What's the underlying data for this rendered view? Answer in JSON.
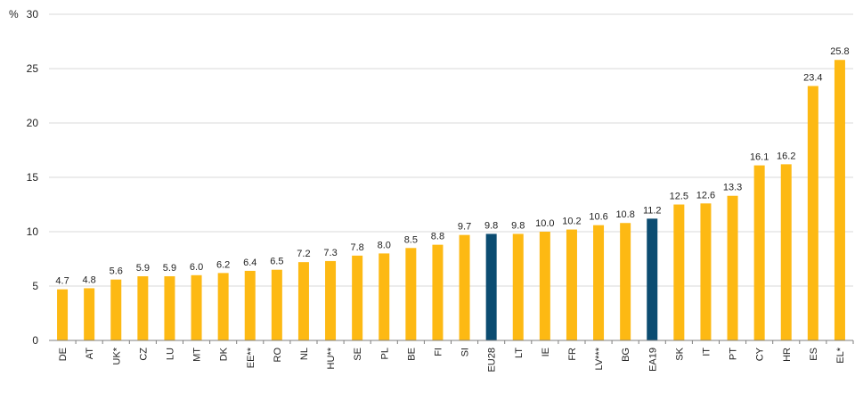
{
  "chart_data": {
    "type": "bar",
    "ylabel": "%",
    "ylim": [
      0,
      30
    ],
    "yticks": [
      0,
      5,
      10,
      15,
      20,
      25,
      30
    ],
    "grid": true,
    "categories": [
      "DE",
      "AT",
      "UK*",
      "CZ",
      "LU",
      "MT",
      "DK",
      "EE**",
      "RO",
      "NL",
      "HU**",
      "SE",
      "PL",
      "BE",
      "FI",
      "SI",
      "EU28",
      "LT",
      "IE",
      "FR",
      "LV***",
      "BG",
      "EA19",
      "SK",
      "IT",
      "PT",
      "CY",
      "HR",
      "ES",
      "EL*"
    ],
    "values": [
      4.7,
      4.8,
      5.6,
      5.9,
      5.9,
      6.0,
      6.2,
      6.4,
      6.5,
      7.2,
      7.3,
      7.8,
      8.0,
      8.5,
      8.8,
      9.7,
      9.8,
      9.8,
      10.0,
      10.2,
      10.6,
      10.8,
      11.2,
      12.5,
      12.6,
      13.3,
      16.1,
      16.2,
      23.4,
      25.8
    ],
    "value_labels": [
      "4.7",
      "4.8",
      "5.6",
      "5.9",
      "5.9",
      "6.0",
      "6.2",
      "6.4",
      "6.5",
      "7.2",
      "7.3",
      "7.8",
      "8.0",
      "8.5",
      "8.8",
      "9.7",
      "9.8",
      "9.8",
      "10.0",
      "10.2",
      "10.6",
      "10.8",
      "11.2",
      "12.5",
      "12.6",
      "13.3",
      "16.1",
      "16.2",
      "23.4",
      "25.8"
    ],
    "highlight_categories": [
      "EU28",
      "EA19"
    ],
    "colors": {
      "bar": "#FDB913",
      "highlight": "#0B4C71",
      "grid": "#D9D9D9",
      "axis": "#7F7F7F"
    }
  }
}
